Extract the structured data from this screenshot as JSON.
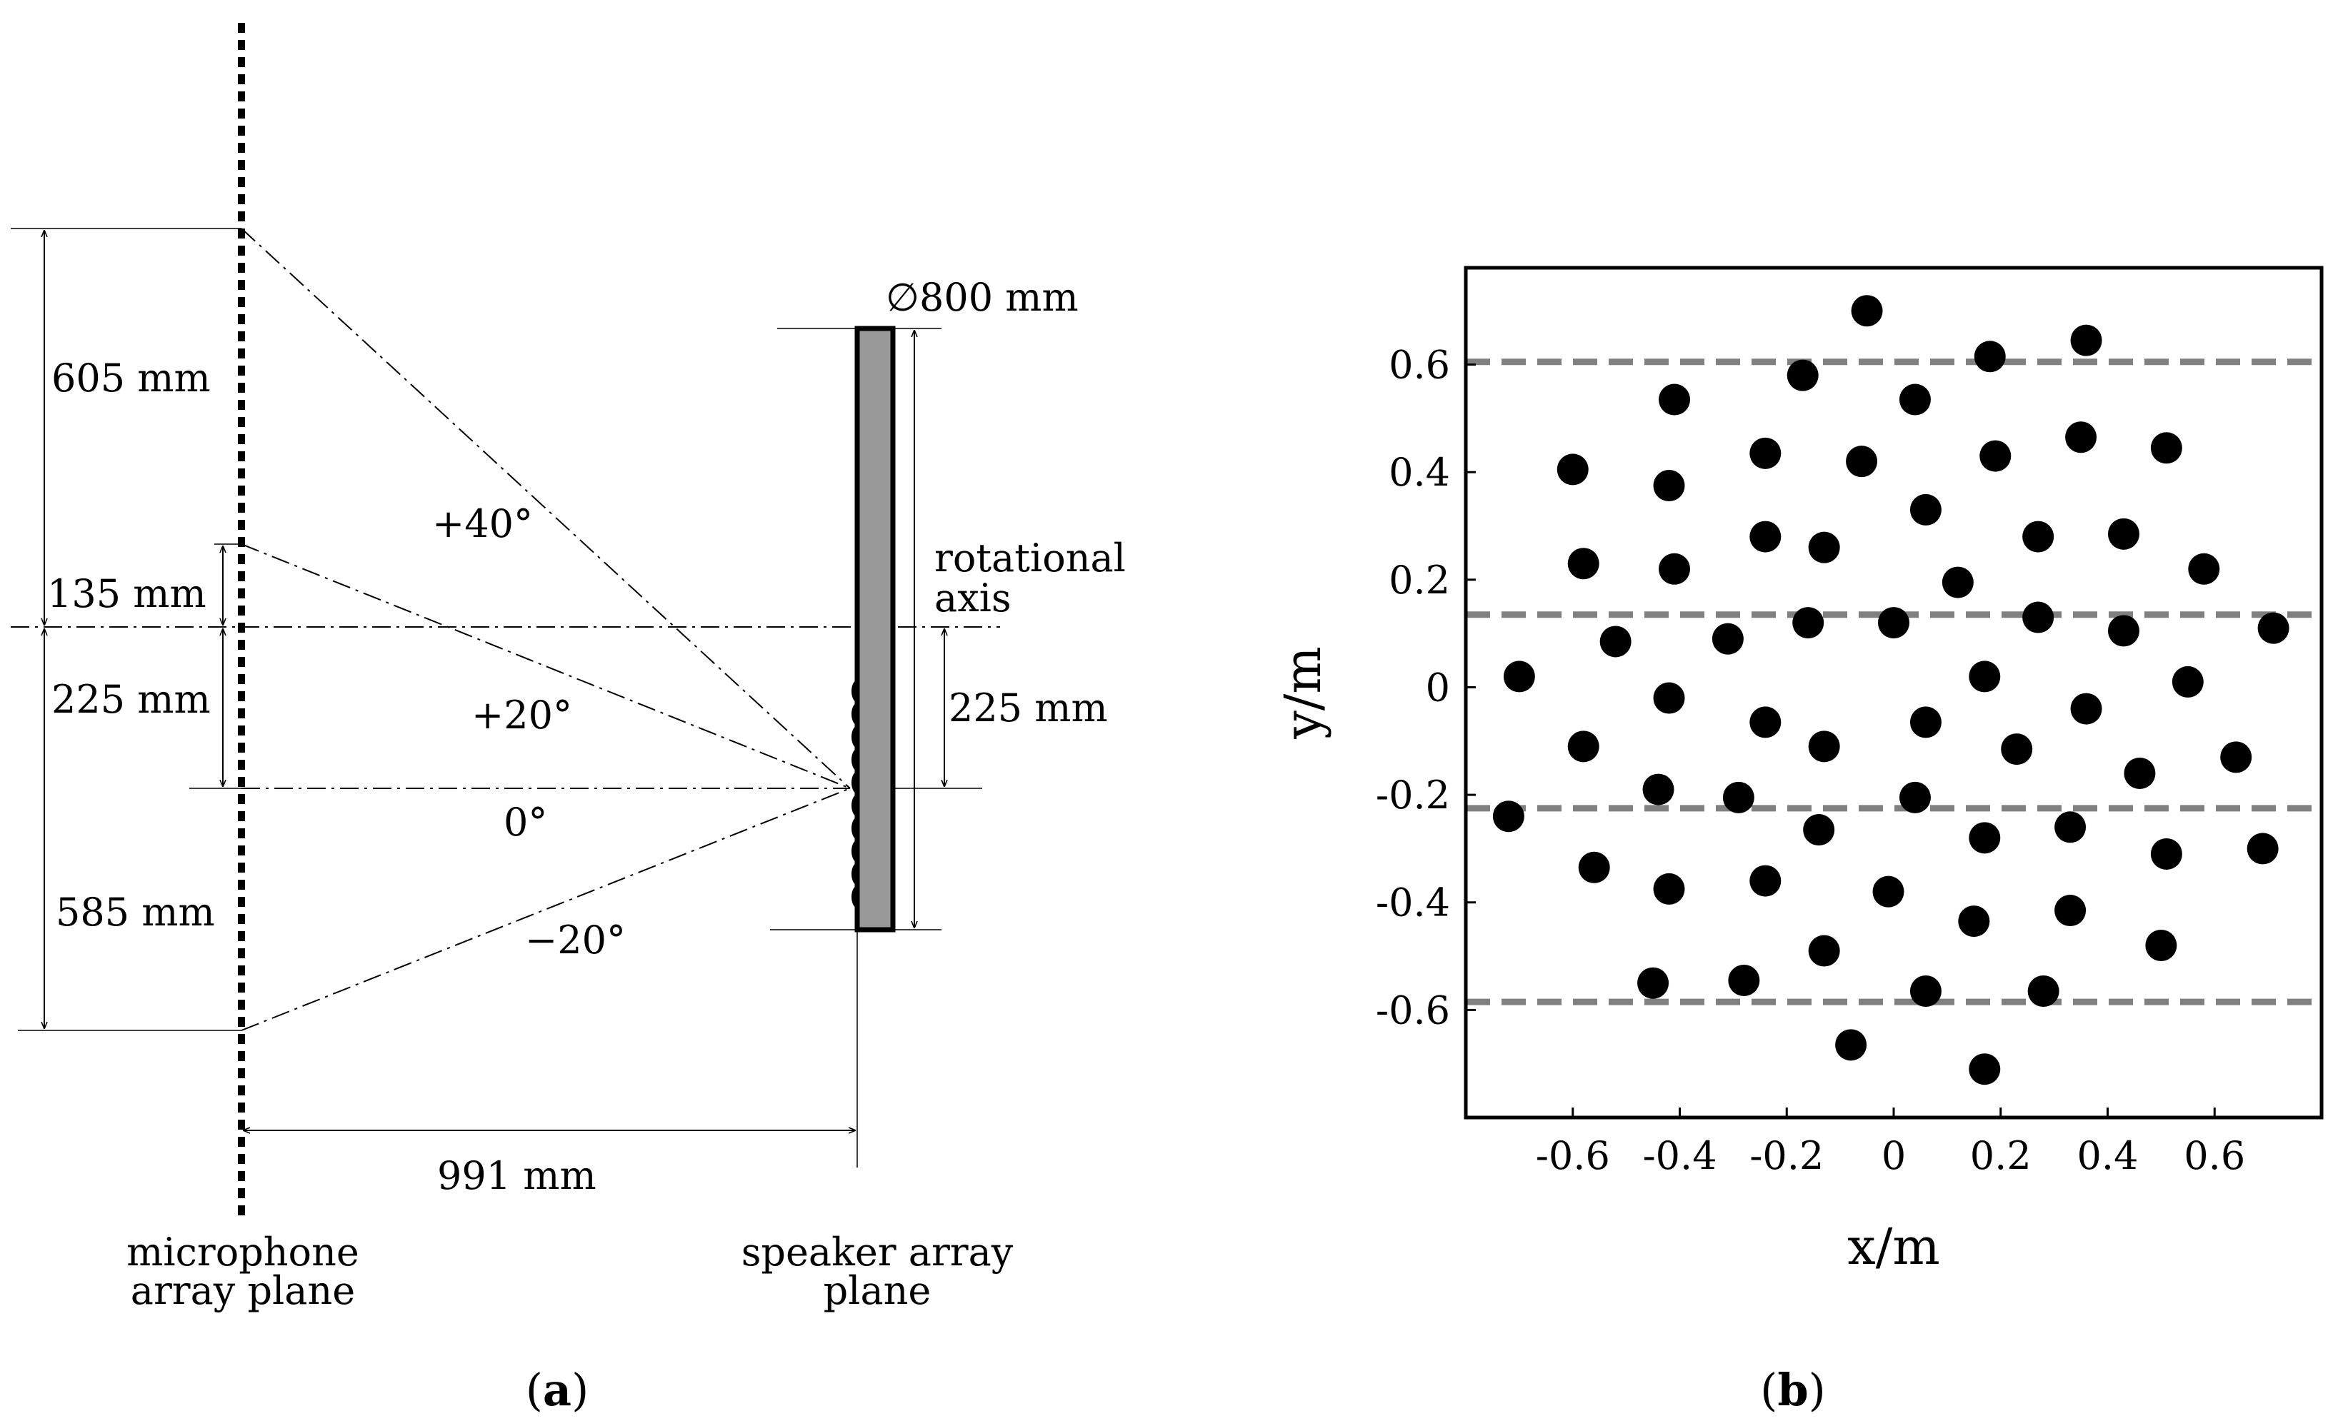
{
  "panel_a": {
    "caption_open": "(",
    "caption_letter": "a",
    "caption_close": ")",
    "dim_605": "605 mm",
    "dim_135": "135 mm",
    "dim_225_left": "225 mm",
    "dim_585": "585 mm",
    "dim_991": "991 mm",
    "dim_225_right": "225 mm",
    "diameter": "∅800 mm",
    "rotational_axis_line1": "rotational",
    "rotational_axis_line2": "axis",
    "angle_p40": "+40°",
    "angle_p20": "+20°",
    "angle_0": "0°",
    "angle_m20": "−20°",
    "mic_plane_line1": "microphone",
    "mic_plane_line2": "array plane",
    "spk_plane_line1": "speaker array",
    "spk_plane_line2": "plane"
  },
  "panel_b": {
    "caption_open": "(",
    "caption_letter": "b",
    "caption_close": ")",
    "chart_data": {
      "type": "scatter",
      "xlabel": "x/m",
      "ylabel": "y/m",
      "xlim": [
        -0.8,
        0.8
      ],
      "ylim": [
        -0.8,
        0.78
      ],
      "xticks": [
        -0.6,
        -0.4,
        -0.2,
        0,
        0.2,
        0.4,
        0.6
      ],
      "xtick_labels": [
        "-0.6",
        "-0.4",
        "-0.2",
        "0",
        "0.2",
        "0.4",
        "0.6"
      ],
      "yticks": [
        0.6,
        0.4,
        0.2,
        0,
        -0.2,
        -0.4,
        -0.6
      ],
      "ytick_labels": [
        "0.6",
        "0.4",
        "0.2",
        "0",
        "-0.2",
        "-0.4",
        "-0.6"
      ],
      "reference_lines_y": [
        0.605,
        0.135,
        -0.225,
        -0.585
      ],
      "reference_line_color": "#808080",
      "marker_color": "#000000",
      "points": [
        [
          -0.05,
          0.7
        ],
        [
          0.36,
          0.645
        ],
        [
          0.18,
          0.615
        ],
        [
          -0.17,
          0.58
        ],
        [
          -0.41,
          0.535
        ],
        [
          0.04,
          0.535
        ],
        [
          0.35,
          0.465
        ],
        [
          -0.24,
          0.435
        ],
        [
          0.19,
          0.43
        ],
        [
          0.51,
          0.445
        ],
        [
          -0.06,
          0.42
        ],
        [
          -0.6,
          0.405
        ],
        [
          -0.42,
          0.375
        ],
        [
          0.06,
          0.33
        ],
        [
          -0.24,
          0.28
        ],
        [
          0.27,
          0.28
        ],
        [
          0.43,
          0.285
        ],
        [
          -0.13,
          0.26
        ],
        [
          -0.58,
          0.23
        ],
        [
          -0.41,
          0.22
        ],
        [
          0.58,
          0.22
        ],
        [
          0.12,
          0.195
        ],
        [
          -0.16,
          0.12
        ],
        [
          0.0,
          0.12
        ],
        [
          0.27,
          0.13
        ],
        [
          0.43,
          0.105
        ],
        [
          0.71,
          0.11
        ],
        [
          -0.52,
          0.085
        ],
        [
          -0.31,
          0.09
        ],
        [
          -0.7,
          0.02
        ],
        [
          0.17,
          0.02
        ],
        [
          0.55,
          0.01
        ],
        [
          -0.42,
          -0.02
        ],
        [
          0.36,
          -0.04
        ],
        [
          -0.24,
          -0.065
        ],
        [
          0.06,
          -0.065
        ],
        [
          -0.58,
          -0.11
        ],
        [
          -0.13,
          -0.11
        ],
        [
          0.23,
          -0.115
        ],
        [
          0.64,
          -0.13
        ],
        [
          0.46,
          -0.16
        ],
        [
          -0.44,
          -0.19
        ],
        [
          -0.29,
          -0.205
        ],
        [
          0.04,
          -0.205
        ],
        [
          -0.72,
          -0.24
        ],
        [
          0.33,
          -0.26
        ],
        [
          -0.14,
          -0.265
        ],
        [
          0.17,
          -0.28
        ],
        [
          0.69,
          -0.3
        ],
        [
          0.51,
          -0.31
        ],
        [
          -0.56,
          -0.335
        ],
        [
          -0.24,
          -0.36
        ],
        [
          -0.42,
          -0.375
        ],
        [
          -0.01,
          -0.38
        ],
        [
          0.33,
          -0.415
        ],
        [
          0.15,
          -0.435
        ],
        [
          -0.13,
          -0.49
        ],
        [
          0.5,
          -0.48
        ],
        [
          -0.45,
          -0.55
        ],
        [
          -0.28,
          -0.545
        ],
        [
          0.06,
          -0.565
        ],
        [
          0.28,
          -0.565
        ],
        [
          -0.08,
          -0.665
        ],
        [
          0.17,
          -0.71
        ]
      ]
    }
  }
}
